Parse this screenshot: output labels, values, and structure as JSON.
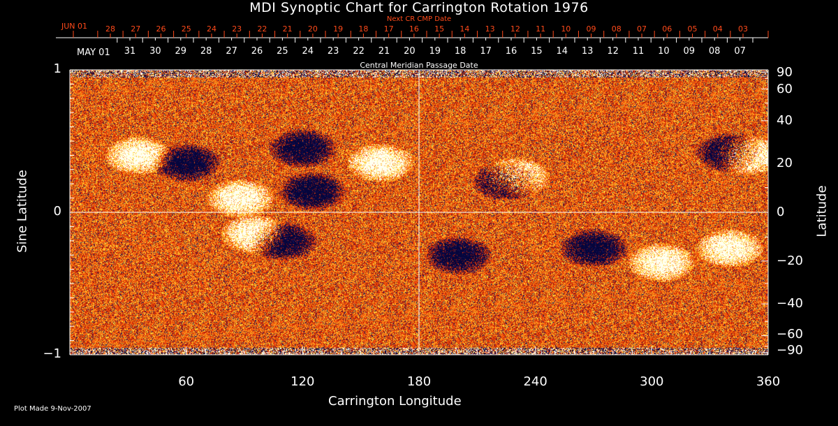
{
  "chart_data": {
    "type": "heatmap",
    "title": "MDI Synoptic Chart for Carrington Rotation 1976",
    "xlabel": "Carrington Longitude",
    "ylabel": "Sine Latitude",
    "ylabel_right": "Latitude",
    "xlim": [
      0,
      360
    ],
    "ylim": [
      -1,
      1
    ],
    "x_ticks": [
      "60",
      "120",
      "180",
      "240",
      "300",
      "360"
    ],
    "y_ticks_left": [
      "1",
      "0",
      "−1"
    ],
    "y_ticks_right": [
      "90",
      "60",
      "40",
      "20",
      "0",
      "−20",
      "−40",
      "−60",
      "−90"
    ],
    "y_ticks_right_values": [
      90,
      60,
      40,
      20,
      0,
      -20,
      -40,
      -60,
      -90
    ],
    "top_axis_label": "Central Meridian Passage Date",
    "top_axis_start": "MAY 01",
    "top_axis_dates": [
      "31",
      "30",
      "29",
      "28",
      "27",
      "26",
      "25",
      "24",
      "23",
      "22",
      "21",
      "20",
      "19",
      "18",
      "17",
      "16",
      "15",
      "14",
      "13",
      "12",
      "11",
      "10",
      "09",
      "08",
      "07"
    ],
    "next_axis_label": "Next CR CMP Date",
    "next_axis_start": "JUN 01",
    "next_axis_dates": [
      "28",
      "27",
      "26",
      "25",
      "24",
      "23",
      "22",
      "21",
      "20",
      "19",
      "18",
      "17",
      "16",
      "15",
      "14",
      "13",
      "12",
      "11",
      "10",
      "09",
      "08",
      "07",
      "06",
      "05",
      "04",
      "03"
    ],
    "colors": {
      "background_field": "#e8400c",
      "positive": "#ffffff",
      "negative": "#0a0a6e",
      "next_axis": "#ff4a1a"
    }
  },
  "footer": {
    "plot_made": "Plot Made  9-Nov-2007"
  }
}
